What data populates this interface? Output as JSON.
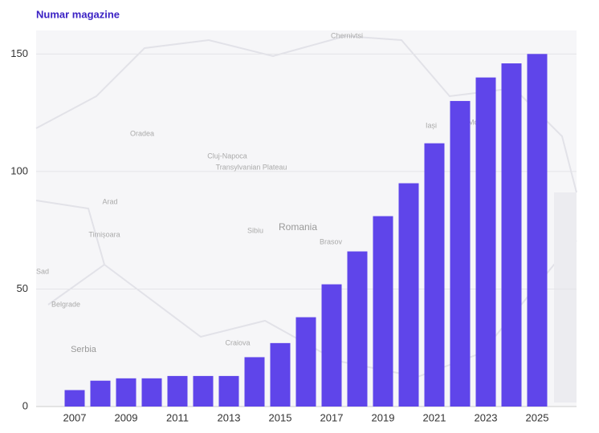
{
  "chart_data": {
    "type": "bar",
    "title": "Numar magazine",
    "categories": [
      "2007",
      null,
      "2009",
      null,
      "2011",
      null,
      "2013",
      null,
      "2015",
      null,
      "2017",
      null,
      "2019",
      null,
      "2021",
      null,
      "2023",
      null,
      "2025"
    ],
    "values": [
      7,
      11,
      12,
      12,
      13,
      13,
      13,
      21,
      27,
      38,
      52,
      66,
      81,
      95,
      112,
      130,
      140,
      146,
      150
    ],
    "color": "#5f45ea",
    "ylim": [
      0,
      160
    ],
    "yticks": [
      0,
      50,
      100,
      150
    ],
    "grid": true,
    "annotations": [
      "Chernivtsi",
      "Iași",
      "Moldova",
      "Oradea",
      "Cluj-Napoca",
      "Transylvanian Plateau",
      "Arad",
      "Romania",
      "Sibiu",
      "Brasov",
      "Timișoara",
      "Sad",
      "Belgrade",
      "Serbia",
      "Craiova"
    ]
  }
}
